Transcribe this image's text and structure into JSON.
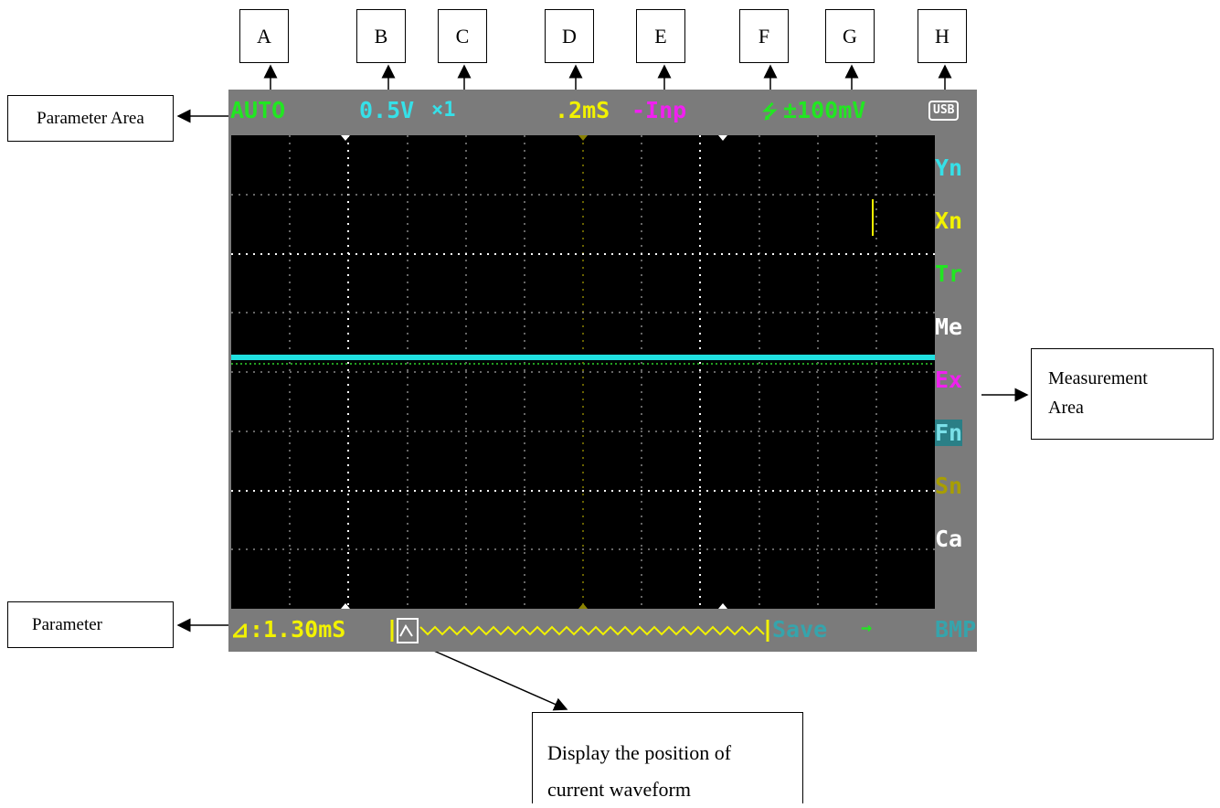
{
  "letters": [
    "A",
    "B",
    "C",
    "D",
    "E",
    "F",
    "G",
    "H"
  ],
  "callouts": {
    "parameter_area": "Parameter Area",
    "measurement_area_line1": "Measurement",
    "measurement_area_line2": "Area",
    "parameter": "Parameter",
    "waveform_pos_line1": "Display the position of",
    "waveform_pos_line2": "current waveform"
  },
  "screen": {
    "top": {
      "mode": "AUTO",
      "volt_div": "0.5V",
      "probe": "×1",
      "time_div": ".2mS",
      "trigger_source": "-Inp",
      "trigger_edge": "⭍",
      "trigger_level": "±100mV",
      "usb": "USB"
    },
    "measure_items": [
      {
        "label": "Yn",
        "color": "#36e0e8"
      },
      {
        "label": "Xn",
        "color": "#f2f200"
      },
      {
        "label": "Tr",
        "color": "#22e622"
      },
      {
        "label": "Me",
        "color": "#ffffff"
      },
      {
        "label": "Ex",
        "color": "#f020f0"
      },
      {
        "label": "Fn",
        "color": "#36a4ac"
      },
      {
        "label": "Sn",
        "color": "#a89e00"
      },
      {
        "label": "Ca",
        "color": "#ffffff"
      }
    ],
    "bottom": {
      "delta": "⊿:1.30mS",
      "save": "Save",
      "arrow": "→",
      "format": "BMP"
    },
    "colors": {
      "auto": "#22e622",
      "volt": "#36e0e8",
      "time": "#f2f200",
      "trigger_source": "#f020f0",
      "trigger": "#22e622",
      "trace": "#20e0e0",
      "save": "#36a4ac"
    }
  }
}
